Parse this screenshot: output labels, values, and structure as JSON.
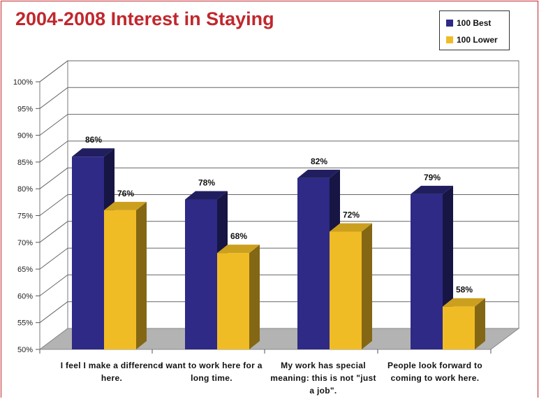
{
  "chart_data": {
    "type": "bar",
    "title": "2004-2008 Interest in Staying",
    "categories": [
      "I feel I make a difference here.",
      "I want to work here for a long time.",
      "My work has special meaning: this is not \"just a job\".",
      "People look forward to coming to work here."
    ],
    "series": [
      {
        "name": "100 Best",
        "values": [
          86,
          78,
          82,
          79
        ],
        "color": "#2e2a86"
      },
      {
        "name": "100 Lower",
        "values": [
          76,
          68,
          72,
          58
        ],
        "color": "#f0bc25"
      }
    ],
    "data_labels": [
      [
        "86%",
        "78%",
        "82%",
        "79%"
      ],
      [
        "76%",
        "68%",
        "72%",
        "58%"
      ]
    ],
    "y_ticks": [
      "50%",
      "55%",
      "60%",
      "65%",
      "70%",
      "75%",
      "80%",
      "85%",
      "90%",
      "95%",
      "100%"
    ],
    "ylim": [
      50,
      100
    ],
    "grid": true,
    "legend_position": "top-right",
    "xlabel": "",
    "ylabel": ""
  },
  "colors": {
    "title": "#c1272d",
    "border": "#c1272d",
    "floor": "#b3b3b3",
    "gridline": "#666666"
  }
}
